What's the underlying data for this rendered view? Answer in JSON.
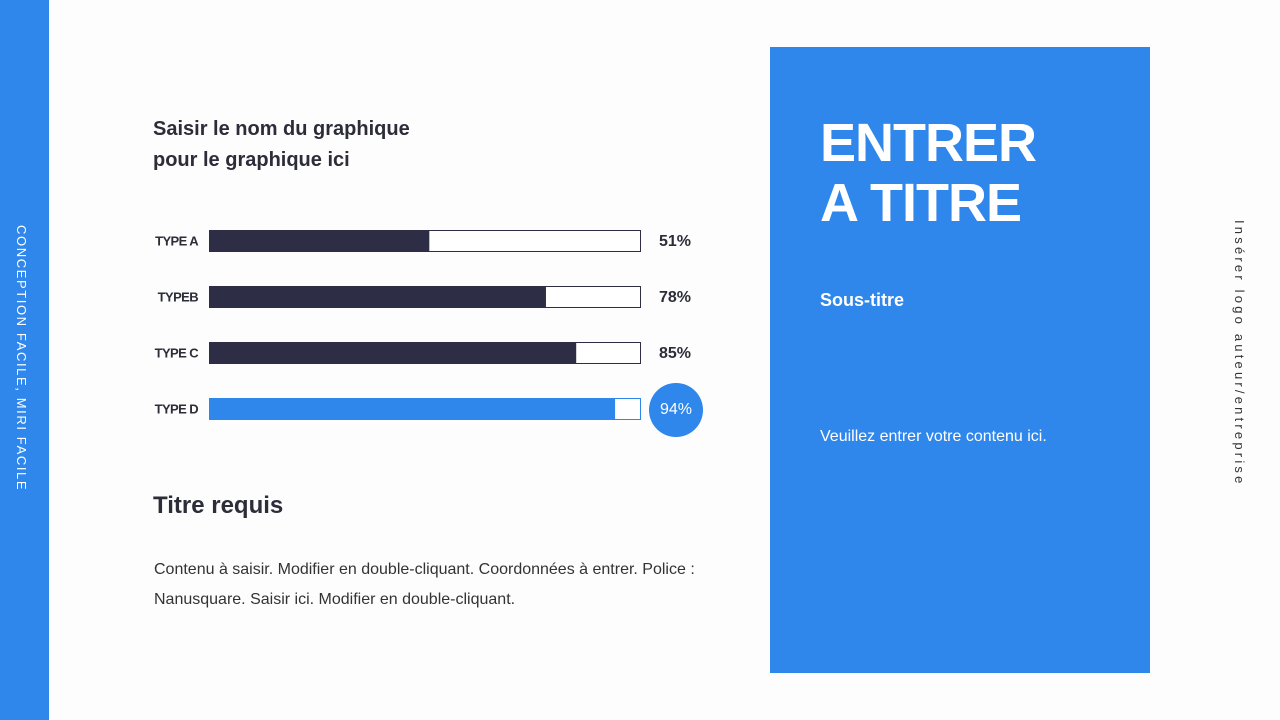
{
  "side_label": "CONCEPTION FACILE, MIRI FACILE",
  "logo_label": "Insérer logo auteur/entreprise",
  "chart_data": {
    "type": "bar",
    "orientation": "horizontal",
    "title": "Saisir le nom du graphique pour le graphique ici",
    "categories": [
      "TYPE A",
      "TYPEB",
      "TYPE C",
      "TYPE D"
    ],
    "values": [
      51,
      78,
      85,
      94
    ],
    "value_labels": [
      "51%",
      "78%",
      "85%",
      "94%"
    ],
    "colors": [
      "#2d2d45",
      "#2d2d45",
      "#2d2d45",
      "#2f86eb"
    ],
    "highlight_index": 3,
    "xlim": [
      0,
      100
    ]
  },
  "section": {
    "title": "Titre requis",
    "body": "Contenu à saisir. Modifier en double-cliquant. Coordonnées à entrer. Police : Nanusquare. Saisir ici. Modifier en double-cliquant."
  },
  "panel": {
    "title": "ENTRER A TITRE",
    "subtitle": "Sous-titre",
    "text": "Veuillez entrer votre contenu ici."
  }
}
